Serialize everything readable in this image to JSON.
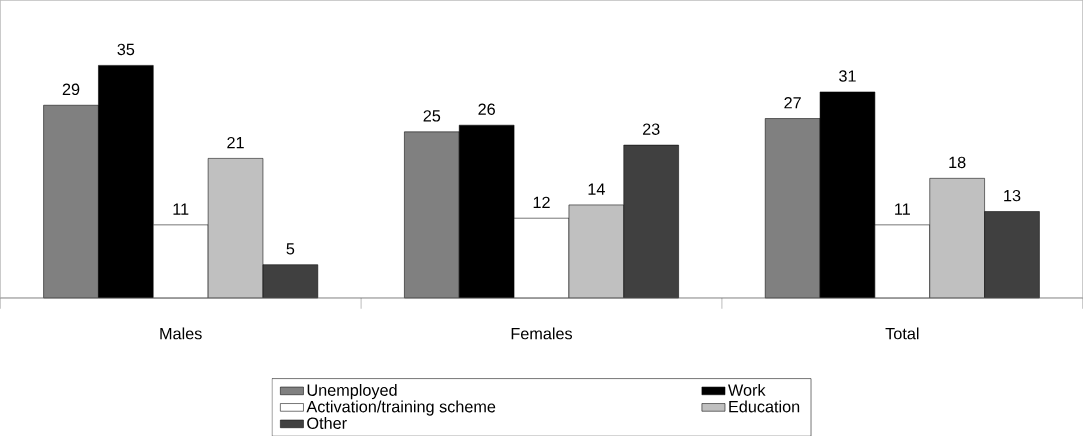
{
  "chart_data": {
    "type": "bar",
    "categories": [
      "Males",
      "Females",
      "Total"
    ],
    "series": [
      {
        "name": "Unemployed",
        "color": "#808080",
        "values": [
          29,
          25,
          27
        ]
      },
      {
        "name": "Work",
        "color": "#000000",
        "values": [
          35,
          26,
          31
        ]
      },
      {
        "name": "Activation/training scheme",
        "color": "#ffffff",
        "values": [
          11,
          12,
          11
        ]
      },
      {
        "name": "Education",
        "color": "#c0c0c0",
        "values": [
          21,
          14,
          18
        ]
      },
      {
        "name": "Other",
        "color": "#404040",
        "values": [
          5,
          23,
          13
        ]
      }
    ],
    "data_labels": true,
    "legend": "bottom"
  }
}
